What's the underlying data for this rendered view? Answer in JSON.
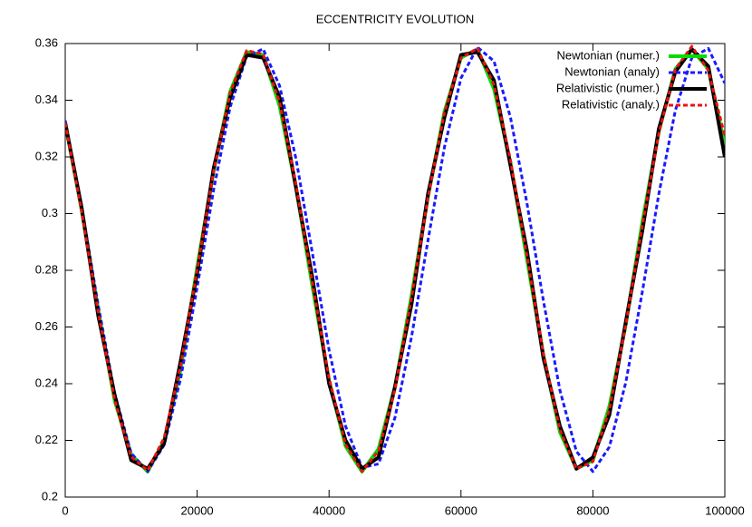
{
  "chart_data": {
    "type": "line",
    "title": "ECCENTRICITY EVOLUTION",
    "x": [
      0,
      2500,
      5000,
      7500,
      10000,
      12500,
      15000,
      17500,
      20000,
      22500,
      25000,
      27500,
      30000,
      32500,
      35000,
      37500,
      40000,
      42500,
      45000,
      47500,
      50000,
      52500,
      55000,
      57500,
      60000,
      62500,
      65000,
      67500,
      70000,
      72500,
      75000,
      77500,
      80000,
      82500,
      85000,
      87500,
      90000,
      92500,
      95000,
      97500,
      100000
    ],
    "series": [
      {
        "name": "Newtonian (numer.)",
        "color": "#00dd00",
        "dashed": false,
        "width": 4,
        "values": [
          0.332,
          0.301,
          0.266,
          0.234,
          0.215,
          0.209,
          0.22,
          0.245,
          0.281,
          0.315,
          0.343,
          0.357,
          0.356,
          0.338,
          0.309,
          0.274,
          0.241,
          0.218,
          0.209,
          0.217,
          0.239,
          0.271,
          0.306,
          0.336,
          0.355,
          0.358,
          0.344,
          0.318,
          0.284,
          0.25,
          0.223,
          0.21,
          0.213,
          0.232,
          0.261,
          0.297,
          0.329,
          0.351,
          0.358,
          0.351,
          0.324
        ]
      },
      {
        "name": "Newtonian (analy)",
        "color": "#1a1aff",
        "dashed": true,
        "width": 3,
        "values": [
          0.3329,
          0.3022,
          0.2677,
          0.2365,
          0.2155,
          0.209,
          0.2184,
          0.2418,
          0.274,
          0.3084,
          0.3376,
          0.3554,
          0.3581,
          0.3451,
          0.3192,
          0.2857,
          0.2519,
          0.225,
          0.2104,
          0.2117,
          0.2281,
          0.2565,
          0.2906,
          0.3235,
          0.3478,
          0.3587,
          0.3538,
          0.334,
          0.3037,
          0.2692,
          0.2377,
          0.2161,
          0.209,
          0.2177,
          0.2406,
          0.2725,
          0.307,
          0.3364,
          0.355,
          0.3583,
          0.346
        ]
      },
      {
        "name": "Relativistic (numer.)",
        "color": "#000000",
        "dashed": false,
        "width": 4,
        "values": [
          0.332,
          0.302,
          0.264,
          0.236,
          0.213,
          0.21,
          0.219,
          0.248,
          0.279,
          0.316,
          0.341,
          0.356,
          0.355,
          0.341,
          0.309,
          0.277,
          0.24,
          0.22,
          0.21,
          0.214,
          0.239,
          0.268,
          0.307,
          0.334,
          0.356,
          0.357,
          0.347,
          0.317,
          0.287,
          0.249,
          0.225,
          0.21,
          0.214,
          0.229,
          0.262,
          0.294,
          0.33,
          0.35,
          0.358,
          0.352,
          0.32
        ]
      },
      {
        "name": "Relativistic (analy.)",
        "color": "#ee1111",
        "dashed": true,
        "width": 3,
        "values": [
          0.332,
          0.3005,
          0.2653,
          0.2342,
          0.2142,
          0.2094,
          0.221,
          0.2465,
          0.2802,
          0.3148,
          0.3426,
          0.3575,
          0.3563,
          0.3392,
          0.31,
          0.2751,
          0.2421,
          0.2185,
          0.209,
          0.2163,
          0.2381,
          0.2704,
          0.3055,
          0.3358,
          0.3549,
          0.3583,
          0.3454,
          0.319,
          0.285,
          0.2506,
          0.2237,
          0.21,
          0.2125,
          0.231,
          0.2608,
          0.2959,
          0.3283,
          0.351,
          0.359,
          0.3505,
          0.3274
        ]
      }
    ],
    "xlim": [
      0,
      100000
    ],
    "xticks": [
      0,
      20000,
      40000,
      60000,
      80000,
      100000
    ],
    "ylim": [
      0.2,
      0.36
    ],
    "yticks": [
      0.2,
      0.22,
      0.24,
      0.26,
      0.28,
      0.3,
      0.32,
      0.34,
      0.36
    ],
    "grid": false,
    "legend": "top-right"
  }
}
